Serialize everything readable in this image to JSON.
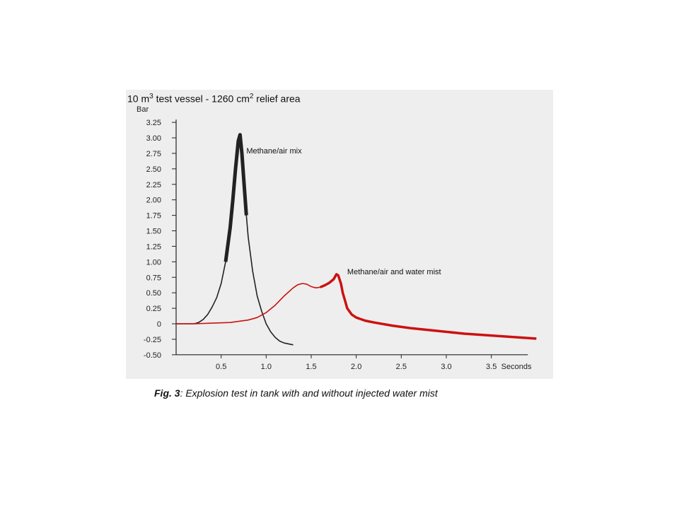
{
  "figure": {
    "title_prefix": "10 m",
    "title_sup1": "3",
    "title_mid": " test vessel - 1260 cm",
    "title_sup2": "2",
    "title_suffix": " relief area",
    "caption_label": "Fig. 3",
    "caption_text": ":  Explosion test in tank with and without injected water mist"
  },
  "chart_data": {
    "type": "line",
    "title": "10 m3 test vessel - 1260 cm2 relief area",
    "ylabel": "Bar",
    "xlabel": "Seconds",
    "xlim": [
      0,
      4.0
    ],
    "ylim": [
      -0.5,
      3.25
    ],
    "x_ticks": [
      0.5,
      1.0,
      1.5,
      2.0,
      2.5,
      3.0,
      3.5
    ],
    "x_tick_labels": [
      "0.5",
      "1.0",
      "1.5",
      "2.0",
      "2.5",
      "3.0",
      "3.5"
    ],
    "y_ticks": [
      3.25,
      3.0,
      2.75,
      2.5,
      2.25,
      2.0,
      1.75,
      1.5,
      1.25,
      1.0,
      0.75,
      0.5,
      0.25,
      0,
      -0.25,
      -0.5
    ],
    "y_tick_labels": [
      "3.25",
      "3.00",
      "2.75",
      "2.50",
      "2.25",
      "2.00",
      "1.75",
      "1.50",
      "1.25",
      "1.00",
      "0.75",
      "0.50",
      "0.25",
      "0",
      "-0.25",
      "-0.50"
    ],
    "grid": false,
    "series": [
      {
        "name": "Methane/air mix",
        "color": "#222222",
        "x": [
          0.0,
          0.2,
          0.25,
          0.3,
          0.35,
          0.4,
          0.45,
          0.5,
          0.55,
          0.6,
          0.63,
          0.66,
          0.69,
          0.71,
          0.73,
          0.75,
          0.78,
          0.8,
          0.85,
          0.9,
          0.95,
          1.0,
          1.05,
          1.1,
          1.15,
          1.2,
          1.3
        ],
        "y": [
          0.0,
          0.0,
          0.02,
          0.07,
          0.15,
          0.27,
          0.42,
          0.65,
          1.0,
          1.55,
          2.0,
          2.5,
          2.95,
          3.05,
          2.75,
          2.35,
          1.75,
          1.4,
          0.85,
          0.45,
          0.2,
          0.0,
          -0.13,
          -0.22,
          -0.28,
          -0.31,
          -0.34
        ]
      },
      {
        "name": "Methane/air and water mist",
        "color": "#cc1111",
        "x": [
          0.0,
          0.2,
          0.4,
          0.6,
          0.8,
          0.9,
          1.0,
          1.1,
          1.2,
          1.3,
          1.35,
          1.4,
          1.45,
          1.5,
          1.55,
          1.6,
          1.65,
          1.7,
          1.75,
          1.78,
          1.8,
          1.83,
          1.85,
          1.88,
          1.9,
          1.95,
          2.0,
          2.1,
          2.2,
          2.4,
          2.6,
          2.8,
          3.0,
          3.2,
          3.4,
          3.6,
          3.8,
          4.0
        ],
        "y": [
          0.0,
          0.0,
          0.01,
          0.02,
          0.06,
          0.1,
          0.18,
          0.3,
          0.45,
          0.58,
          0.63,
          0.65,
          0.64,
          0.6,
          0.58,
          0.59,
          0.62,
          0.66,
          0.72,
          0.8,
          0.78,
          0.65,
          0.5,
          0.35,
          0.25,
          0.15,
          0.1,
          0.05,
          0.02,
          -0.03,
          -0.07,
          -0.1,
          -0.13,
          -0.16,
          -0.18,
          -0.2,
          -0.22,
          -0.24
        ]
      }
    ],
    "annotations": [
      {
        "text": "Methane/air mix",
        "x": 0.78,
        "y": 2.75
      },
      {
        "text": "Methane/air and water mist",
        "x": 1.9,
        "y": 0.8
      }
    ]
  }
}
